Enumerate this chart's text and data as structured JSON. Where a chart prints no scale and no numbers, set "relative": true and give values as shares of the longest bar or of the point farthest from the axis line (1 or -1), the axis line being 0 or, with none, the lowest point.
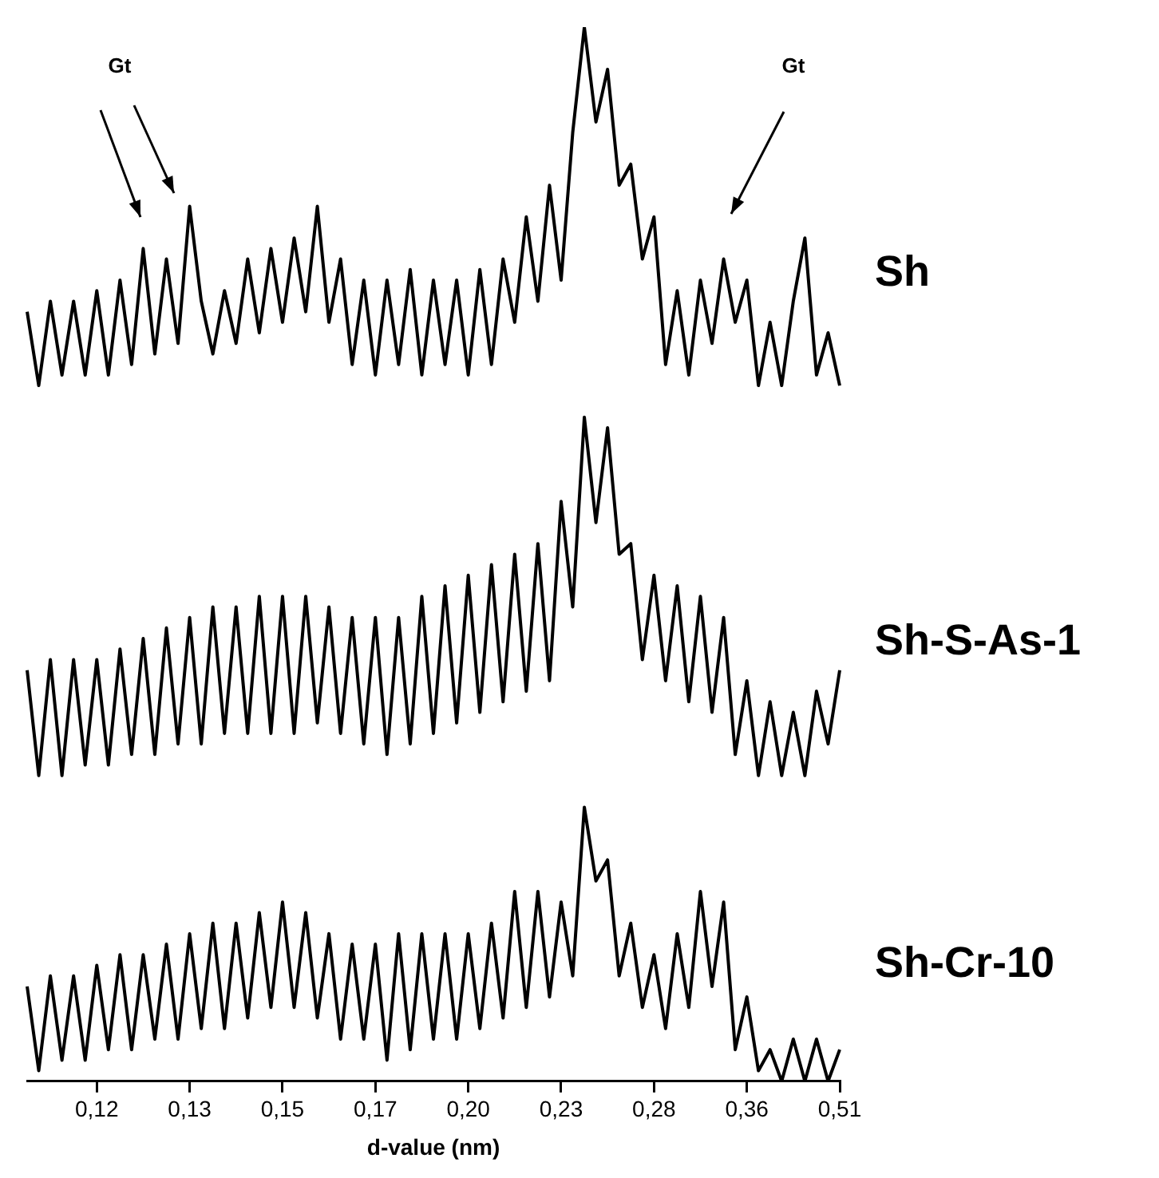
{
  "chart_data": {
    "type": "line",
    "relative": true,
    "xlabel": "d-value (nm)",
    "categories": [
      null,
      null,
      null,
      null,
      null,
      null,
      "0,12",
      null,
      null,
      null,
      null,
      null,
      null,
      null,
      "0,13",
      null,
      null,
      null,
      null,
      null,
      null,
      null,
      "0,15",
      null,
      null,
      null,
      null,
      null,
      null,
      null,
      "0,17",
      null,
      null,
      null,
      null,
      null,
      null,
      null,
      "0,20",
      null,
      null,
      null,
      null,
      null,
      null,
      null,
      "0,23",
      null,
      null,
      null,
      null,
      null,
      null,
      null,
      "0,28",
      null,
      null,
      null,
      null,
      null,
      null,
      null,
      "0,36",
      null,
      null,
      null,
      null,
      null,
      null,
      null,
      "0,51"
    ],
    "series": [
      {
        "name": "Sh",
        "color": "#000000",
        "values": [
          0.73,
          0.66,
          0.74,
          0.67,
          0.74,
          0.67,
          0.75,
          0.67,
          0.76,
          0.68,
          0.79,
          0.69,
          0.78,
          0.7,
          0.83,
          0.74,
          0.69,
          0.75,
          0.7,
          0.78,
          0.71,
          0.79,
          0.72,
          0.8,
          0.73,
          0.83,
          0.72,
          0.78,
          0.68,
          0.76,
          0.67,
          0.76,
          0.68,
          0.77,
          0.67,
          0.76,
          0.68,
          0.76,
          0.67,
          0.77,
          0.68,
          0.78,
          0.72,
          0.82,
          0.74,
          0.85,
          0.76,
          0.9,
          1,
          0.91,
          0.96,
          0.85,
          0.87,
          0.78,
          0.82,
          0.68,
          0.75,
          0.67,
          0.76,
          0.7,
          0.78,
          0.72,
          0.76,
          0.66,
          0.72,
          0.66,
          0.74,
          0.8,
          0.67,
          0.71,
          0.66
        ]
      },
      {
        "name": "Sh-S-As-1",
        "color": "#000000",
        "values": [
          0.39,
          0.29,
          0.4,
          0.29,
          0.4,
          0.3,
          0.4,
          0.3,
          0.41,
          0.31,
          0.42,
          0.31,
          0.43,
          0.32,
          0.44,
          0.32,
          0.45,
          0.33,
          0.45,
          0.33,
          0.46,
          0.33,
          0.46,
          0.33,
          0.46,
          0.34,
          0.45,
          0.33,
          0.44,
          0.32,
          0.44,
          0.31,
          0.44,
          0.32,
          0.46,
          0.33,
          0.47,
          0.34,
          0.48,
          0.35,
          0.49,
          0.36,
          0.5,
          0.37,
          0.51,
          0.38,
          0.55,
          0.45,
          0.63,
          0.53,
          0.62,
          0.5,
          0.51,
          0.4,
          0.48,
          0.38,
          0.47,
          0.36,
          0.46,
          0.35,
          0.44,
          0.31,
          0.38,
          0.29,
          0.36,
          0.29,
          0.35,
          0.29,
          0.37,
          0.32,
          0.39
        ]
      },
      {
        "name": "Sh-Cr-10",
        "color": "#000000",
        "values": [
          0.09,
          0.01,
          0.1,
          0.02,
          0.1,
          0.02,
          0.11,
          0.03,
          0.12,
          0.03,
          0.12,
          0.04,
          0.13,
          0.04,
          0.14,
          0.05,
          0.15,
          0.05,
          0.15,
          0.06,
          0.16,
          0.07,
          0.17,
          0.07,
          0.16,
          0.06,
          0.14,
          0.04,
          0.13,
          0.04,
          0.13,
          0.02,
          0.14,
          0.03,
          0.14,
          0.04,
          0.14,
          0.04,
          0.14,
          0.05,
          0.15,
          0.06,
          0.18,
          0.07,
          0.18,
          0.08,
          0.17,
          0.1,
          0.26,
          0.19,
          0.21,
          0.1,
          0.15,
          0.07,
          0.12,
          0.05,
          0.14,
          0.07,
          0.18,
          0.09,
          0.17,
          0.03,
          0.08,
          0.01,
          0.03,
          0,
          0.04,
          0,
          0.04,
          0,
          0.03
        ]
      }
    ],
    "annotations": [
      "Gt",
      "Gt"
    ],
    "grid": false,
    "legend": false,
    "marker": "none",
    "line_style": "solid"
  }
}
